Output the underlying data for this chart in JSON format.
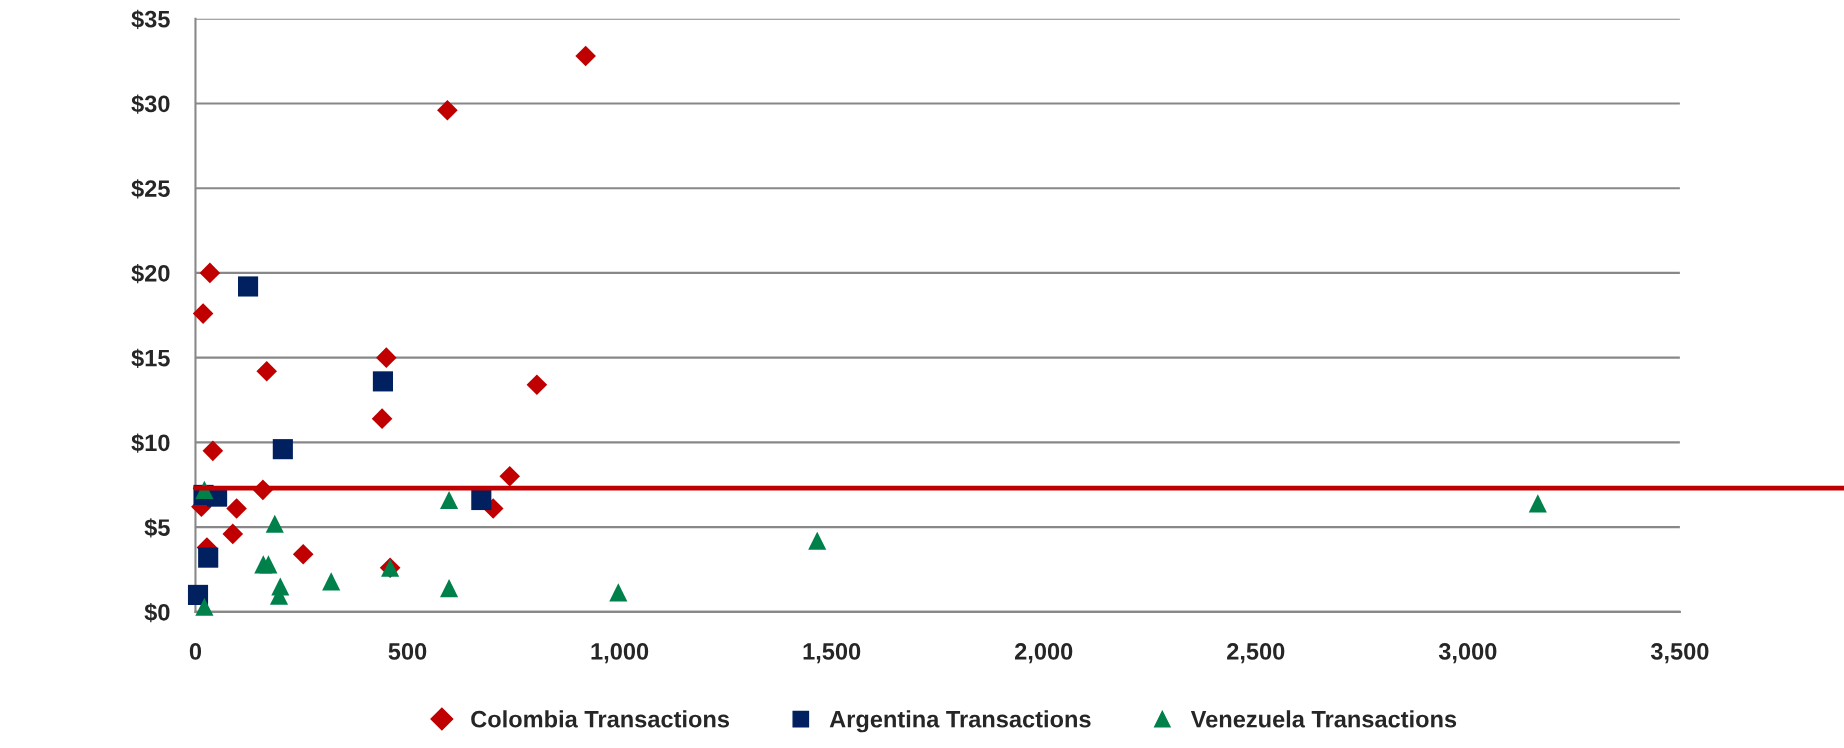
{
  "chart_data": {
    "type": "scatter",
    "xlim": [
      0,
      3500
    ],
    "xticks": [
      0,
      500,
      {
        "value": 1000,
        "label": "1,000"
      },
      {
        "value": 1500,
        "label": "1,500"
      },
      {
        "value": 2000,
        "label": "2,000"
      },
      {
        "value": 2500,
        "label": "2,500"
      },
      {
        "value": 3000,
        "label": "3,000"
      },
      {
        "value": 3500,
        "label": "3,500"
      }
    ],
    "ylim": [
      0,
      35
    ],
    "yticks": [
      {
        "value": 0,
        "label": "$0"
      },
      {
        "value": 5,
        "label": "$5"
      },
      {
        "value": 10,
        "label": "$10"
      },
      {
        "value": 15,
        "label": "$15"
      },
      {
        "value": 20,
        "label": "$20"
      },
      {
        "value": 25,
        "label": "$25"
      },
      {
        "value": 30,
        "label": "$30"
      },
      {
        "value": 35,
        "label": "$35"
      }
    ],
    "grid": "y",
    "legend": "bottom",
    "ref_lines": [
      {
        "axis": "y",
        "value": 7.3,
        "label": null,
        "color": "#c00000"
      }
    ],
    "series": [
      {
        "name": "Colombia Transactions",
        "color": "#c00000",
        "marker": "diamond",
        "x": [
          920,
          594,
          34,
          18,
          450,
          168,
          805,
          440,
          41,
          741,
          159,
          14,
          50,
          97,
          702,
          88,
          27,
          254,
          459
        ],
        "values": [
          32.8,
          29.6,
          20.0,
          17.6,
          15.0,
          14.2,
          13.4,
          11.4,
          9.5,
          8.0,
          7.2,
          6.2,
          null,
          6.1,
          6.1,
          4.6,
          3.8,
          3.4,
          2.6
        ]
      },
      {
        "name": "Argentina Transactions",
        "color": "#002060",
        "marker": "square",
        "x": [
          124,
          442,
          206,
          19,
          51,
          674,
          30,
          6
        ],
        "values": [
          19.2,
          13.6,
          9.6,
          6.9,
          6.8,
          6.6,
          3.2,
          1.0
        ]
      },
      {
        "name": "Venezuela Transactions",
        "color": "#00804a",
        "marker": "triangle",
        "x": [
          21,
          598,
          187,
          160,
          172,
          200,
          197,
          320,
          459,
          598,
          997,
          21,
          1466,
          3165
        ],
        "values": [
          7.2,
          6.6,
          5.2,
          2.8,
          2.8,
          1.5,
          0.95,
          1.8,
          2.6,
          1.4,
          1.15,
          0.3,
          4.2,
          6.4
        ]
      }
    ]
  }
}
